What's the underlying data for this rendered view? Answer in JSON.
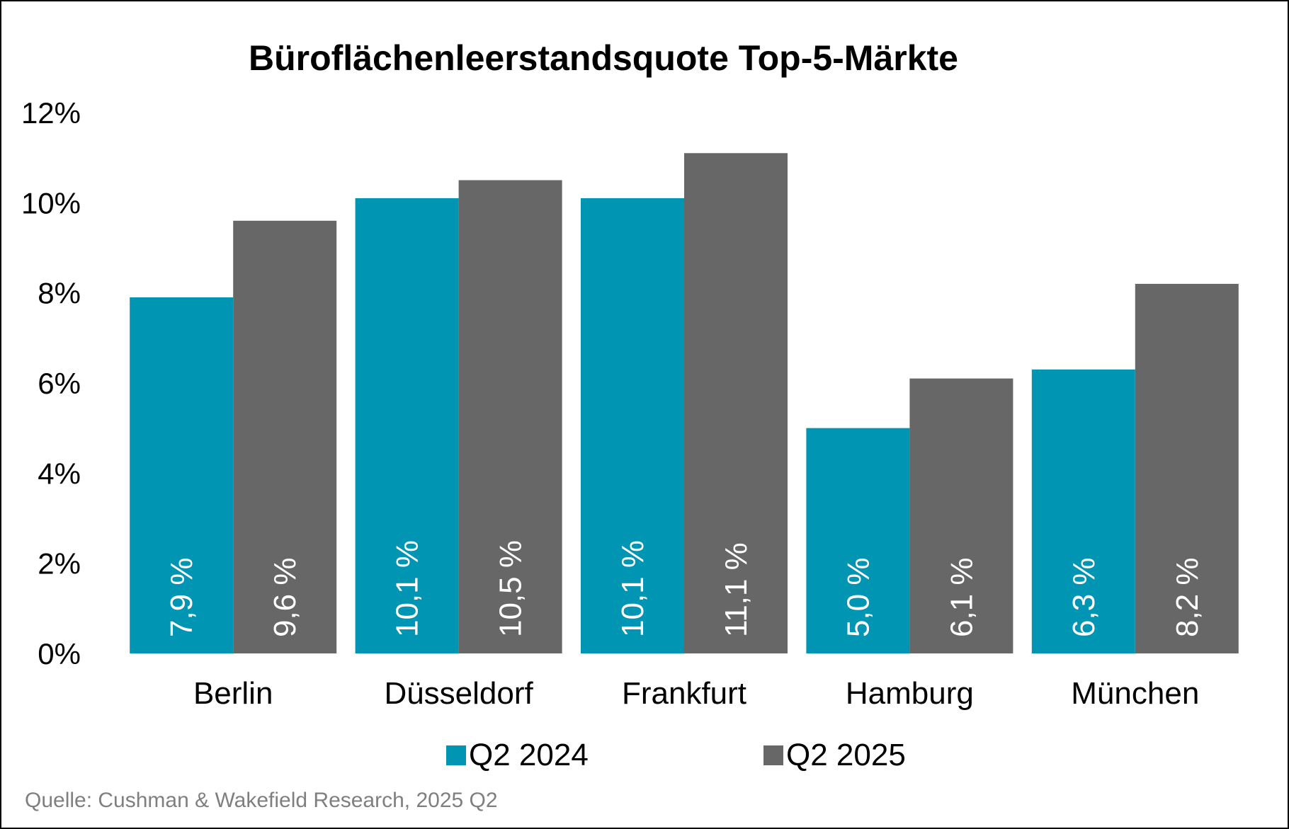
{
  "chart_data": {
    "type": "bar",
    "title": "Büroflächenleerstandsquote Top-5-Märkte",
    "categories": [
      "Berlin",
      "Düsseldorf",
      "Frankfurt",
      "Hamburg",
      "München"
    ],
    "series": [
      {
        "name": "Q2 2024",
        "color": "#0095b3",
        "values": [
          7.9,
          10.1,
          10.1,
          5.0,
          6.3
        ],
        "labels": [
          "7,9 %",
          "10,1 %",
          "10,1 %",
          "5,0 %",
          "6,3 %"
        ]
      },
      {
        "name": "Q2 2025",
        "color": "#666766",
        "values": [
          9.6,
          10.5,
          11.1,
          6.1,
          8.2
        ],
        "labels": [
          "9,6 %",
          "10,5 %",
          "11,1 %",
          "6,1 %",
          "8,2 %"
        ]
      }
    ],
    "yticks": [
      "0%",
      "2%",
      "4%",
      "6%",
      "8%",
      "10%",
      "12%"
    ],
    "ylim": [
      0,
      12
    ],
    "grid": false,
    "legend": "bottom",
    "xlabel": "",
    "ylabel": ""
  },
  "source": "Quelle: Cushman & Wakefield Research, 2025 Q2"
}
